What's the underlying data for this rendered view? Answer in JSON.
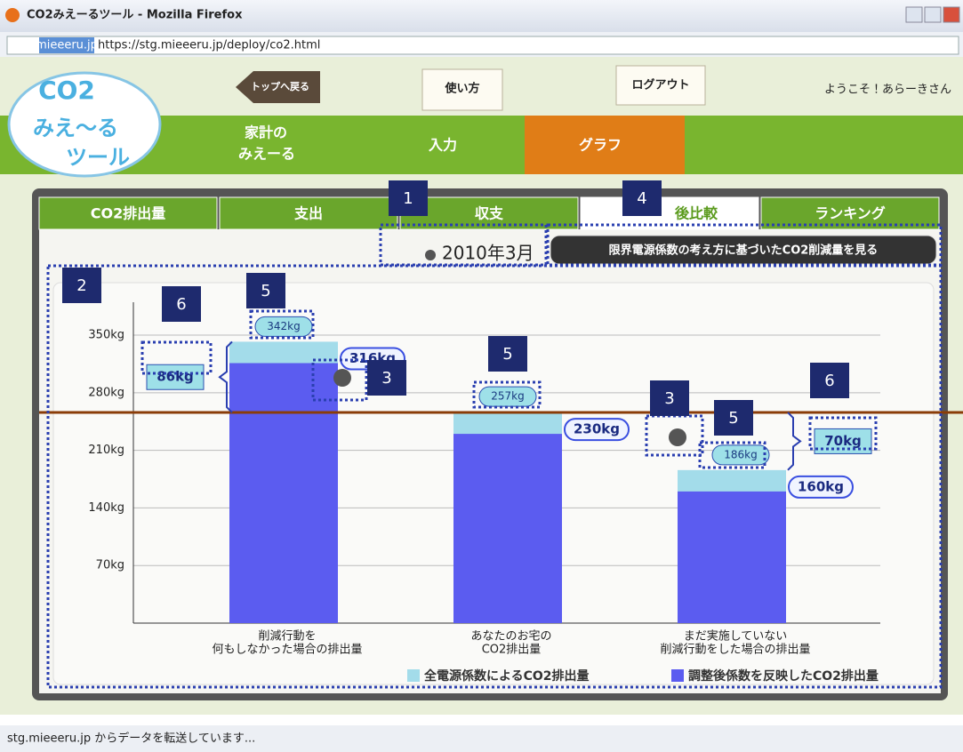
{
  "window": {
    "title": "CO2みえーるツール - Mozilla Firefox",
    "site_badge": "mieeeru.jp",
    "url": "https://stg.mieeeru.jp/deploy/co2.html",
    "status": "stg.mieeeru.jp からデータを転送しています..."
  },
  "header": {
    "logo": [
      "CO2",
      "みえ～る",
      "ツール"
    ],
    "back": "トップへ戻る",
    "help": "使い方",
    "logout": "ログアウト",
    "welcome": "ようこそ！あらーきさん"
  },
  "nav": {
    "home": [
      "家計の",
      "みえーる"
    ],
    "items": [
      "入力",
      "グラフ"
    ]
  },
  "tabs": [
    "CO2排出量",
    "支出",
    "収支",
    "後比較",
    "ランキング"
  ],
  "date": "2010年3月",
  "marginal_button": "限界電源係数の考え方に基づいたCO2削減量を見る",
  "chart_data": {
    "type": "bar",
    "categories": [
      [
        "削減行動を",
        "何もしなかった場合の排出量"
      ],
      [
        "あなたのお宅の",
        "CO2排出量"
      ],
      [
        "まだ実施していない",
        "削減行動をした場合の排出量"
      ]
    ],
    "series": [
      {
        "name": "全電源係数によるCO2排出量",
        "color": "#a3dcea",
        "values": [
          342,
          257,
          186
        ],
        "value_labels": [
          "342kg",
          "257kg",
          "186kg"
        ]
      },
      {
        "name": "調整後係数を反映したCO2排出量",
        "color": "#5b5cf0",
        "values": [
          316,
          230,
          160
        ],
        "value_labels": [
          "316kg",
          "230kg",
          "160kg"
        ]
      }
    ],
    "ylim": [
      0,
      390
    ],
    "yticks": [
      {
        "value": 70,
        "label": "70kg"
      },
      {
        "value": 140,
        "label": "140kg"
      },
      {
        "value": 210,
        "label": "210kg"
      },
      {
        "value": 280,
        "label": "280kg"
      },
      {
        "value": 350,
        "label": "350kg"
      }
    ],
    "grid": true,
    "reference_line": 256,
    "reference_color": "#8a3c08",
    "annotations": [
      {
        "value": 86,
        "label": "86kg"
      },
      {
        "value": 70,
        "label": "70kg"
      }
    ]
  },
  "callouts": [
    "1",
    "4",
    "2",
    "6",
    "5",
    "5",
    "3",
    "3",
    "5",
    "6"
  ]
}
